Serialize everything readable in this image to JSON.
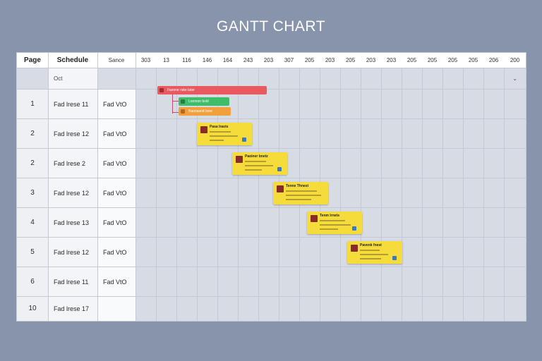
{
  "title": "GANTT CHART",
  "header": {
    "page_label": "Page",
    "schedule_label": "Schedule",
    "sance_label": "Sance",
    "dates": [
      "303",
      "13",
      "116",
      "146",
      "164",
      "243",
      "203",
      "307",
      "205",
      "203",
      "205",
      "203",
      "203",
      "205",
      "205",
      "205",
      "205",
      "206",
      "200"
    ]
  },
  "filter": {
    "value": "Oct"
  },
  "rows": [
    {
      "page": "1",
      "task": "Fad lrese 11",
      "status": "Fad VtO"
    },
    {
      "page": "2",
      "task": "Fad lrese 12",
      "status": "Fad VtO"
    },
    {
      "page": "2",
      "task": "Fad lrese 2",
      "status": "Fad VtO"
    },
    {
      "page": "3",
      "task": "Fad lrese 12",
      "status": "Fad VtO"
    },
    {
      "page": "4",
      "task": "Fad lrese 13",
      "status": "Fad VtO"
    },
    {
      "page": "5",
      "task": "Fad lrese 12",
      "status": "Fad VtO"
    },
    {
      "page": "6",
      "task": "Fad lrese 11",
      "status": "Fad VtO"
    },
    {
      "page": "10",
      "task": "Fad lrese 17",
      "status": ""
    }
  ],
  "bars": [
    {
      "label": "Faxone rake later",
      "color": "#e85a5f"
    },
    {
      "label": "Lonmon bsld",
      "color": "#3fbd69"
    },
    {
      "label": "Baonsand bore",
      "color": "#f2a03d"
    }
  ],
  "cards": [
    {
      "title": "Pasa lrasts"
    },
    {
      "title": "Paoiner bnetz"
    },
    {
      "title": "Tenne Thnest"
    },
    {
      "title": "Tenm lrnets"
    },
    {
      "title": "Pavenk fnest"
    }
  ],
  "colors": {
    "background": "#8794ab",
    "card": "#f5dc3b",
    "grid": "#d7dbe3"
  }
}
